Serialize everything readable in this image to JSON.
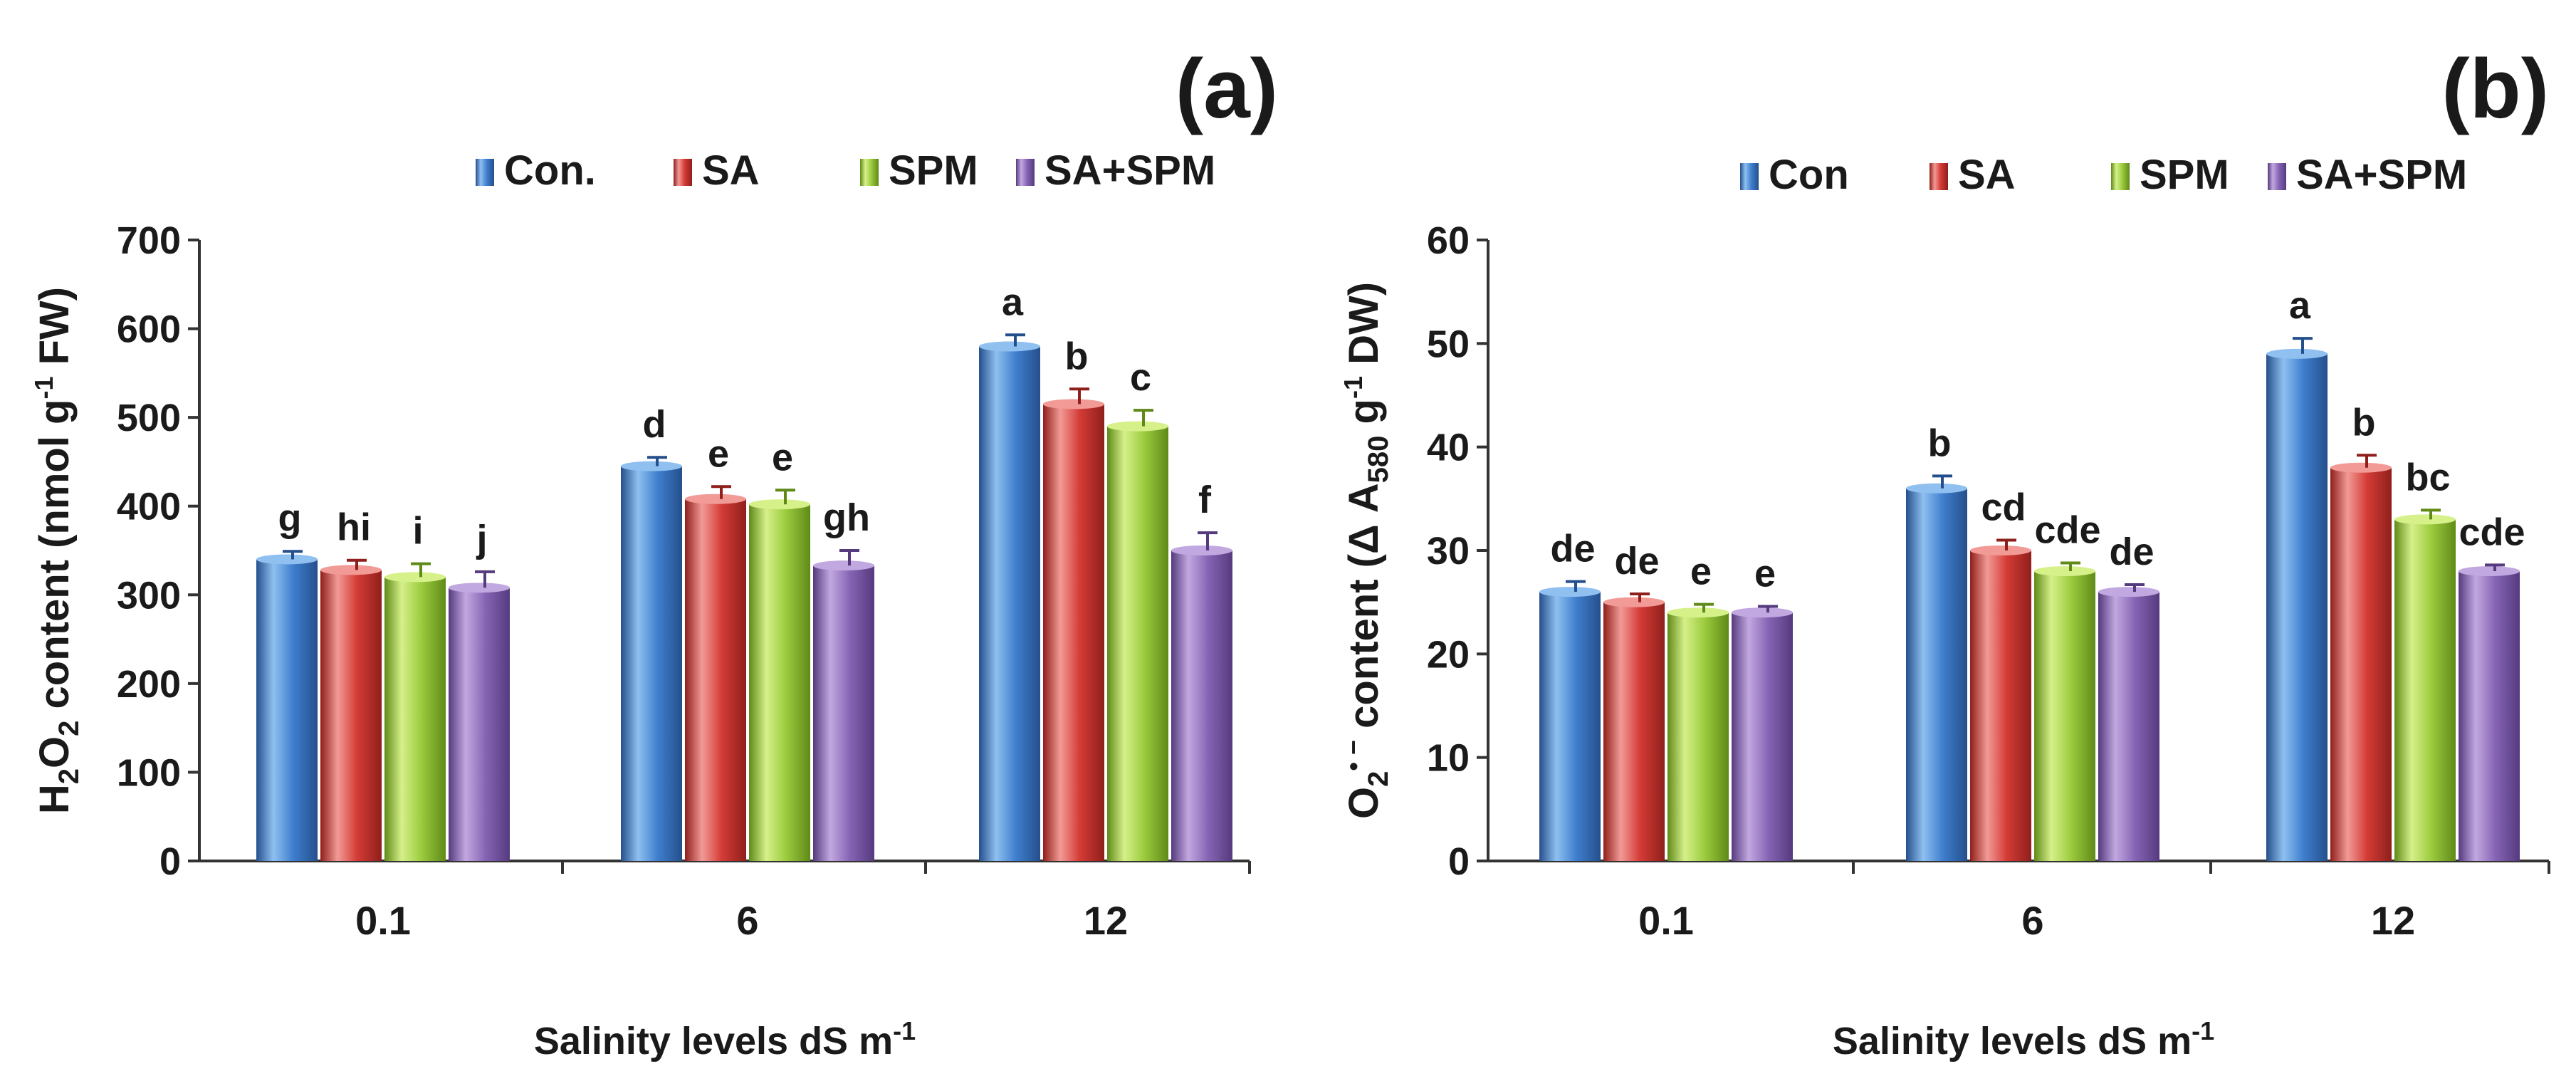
{
  "chart_data": [
    {
      "type": "bar",
      "panel_label": "(a)",
      "categories": [
        "0.1",
        "6",
        "12"
      ],
      "xlabel": {
        "main": "Salinity levels dS m",
        "sup": "-1"
      },
      "ylabel": {
        "p1": "H",
        "s1": "2",
        "p2": "O",
        "s2": "2",
        "p3": " content  (nmol g",
        "s3": "-1",
        "p4": " FW)"
      },
      "ylim": [
        0,
        700
      ],
      "yticks": [
        "0",
        "100",
        "200",
        "300",
        "400",
        "500",
        "600",
        "700"
      ],
      "series": [
        {
          "name": "Con.",
          "values": [
            340,
            445,
            580
          ],
          "errors": [
            9,
            10,
            13
          ],
          "letters": [
            "g",
            "d",
            "a"
          ]
        },
        {
          "name": "SA",
          "values": [
            328,
            408,
            515
          ],
          "errors": [
            11,
            14,
            17
          ],
          "letters": [
            "hi",
            "e",
            "b"
          ]
        },
        {
          "name": "SPM",
          "values": [
            320,
            402,
            490
          ],
          "errors": [
            15,
            16,
            18
          ],
          "letters": [
            "i",
            "e",
            "c"
          ]
        },
        {
          "name": "SA+SPM",
          "values": [
            308,
            333,
            350
          ],
          "errors": [
            18,
            17,
            20
          ],
          "letters": [
            "j",
            "gh",
            "f"
          ]
        }
      ]
    },
    {
      "type": "bar",
      "panel_label": "(b)",
      "categories": [
        "0.1",
        "6",
        "12"
      ],
      "xlabel": {
        "main": "Salinity levels dS m",
        "sup": "-1"
      },
      "ylabel": {
        "p1": "O",
        "s1": "2",
        "sup1": "• −",
        "p2": " content (Δ A",
        "s2": "580",
        "p3": " g",
        "s3": "-1",
        "p4": " DW)"
      },
      "ylim": [
        0,
        60
      ],
      "yticks": [
        "0",
        "10",
        "20",
        "30",
        "40",
        "50",
        "60"
      ],
      "series": [
        {
          "name": "Con",
          "values": [
            26,
            36,
            49
          ],
          "errors": [
            1.0,
            1.2,
            1.5
          ],
          "letters": [
            "de",
            "b",
            "a"
          ]
        },
        {
          "name": "SA",
          "values": [
            25,
            30,
            38
          ],
          "errors": [
            0.8,
            1.0,
            1.2
          ],
          "letters": [
            "de",
            "cd",
            "b"
          ]
        },
        {
          "name": "SPM",
          "values": [
            24,
            28,
            33
          ],
          "errors": [
            0.8,
            0.8,
            0.9
          ],
          "letters": [
            "e",
            "cde",
            "bc"
          ]
        },
        {
          "name": "SA+SPM",
          "values": [
            24,
            26,
            28
          ],
          "errors": [
            0.6,
            0.7,
            0.6
          ],
          "letters": [
            "e",
            "de",
            "cde"
          ]
        }
      ]
    }
  ],
  "colors": {
    "series_fill": [
      "#3f7fce",
      "#d43b36",
      "#9ccc3e",
      "#8664b4"
    ],
    "series_light": [
      "#8fc0f0",
      "#f29a96",
      "#d6f08a",
      "#c2a8e0"
    ],
    "series_dark": [
      "#254f8c",
      "#8f1f1b",
      "#5f8a18",
      "#553a7e"
    ],
    "axis": "#333333",
    "text": "#1a1a1a"
  }
}
